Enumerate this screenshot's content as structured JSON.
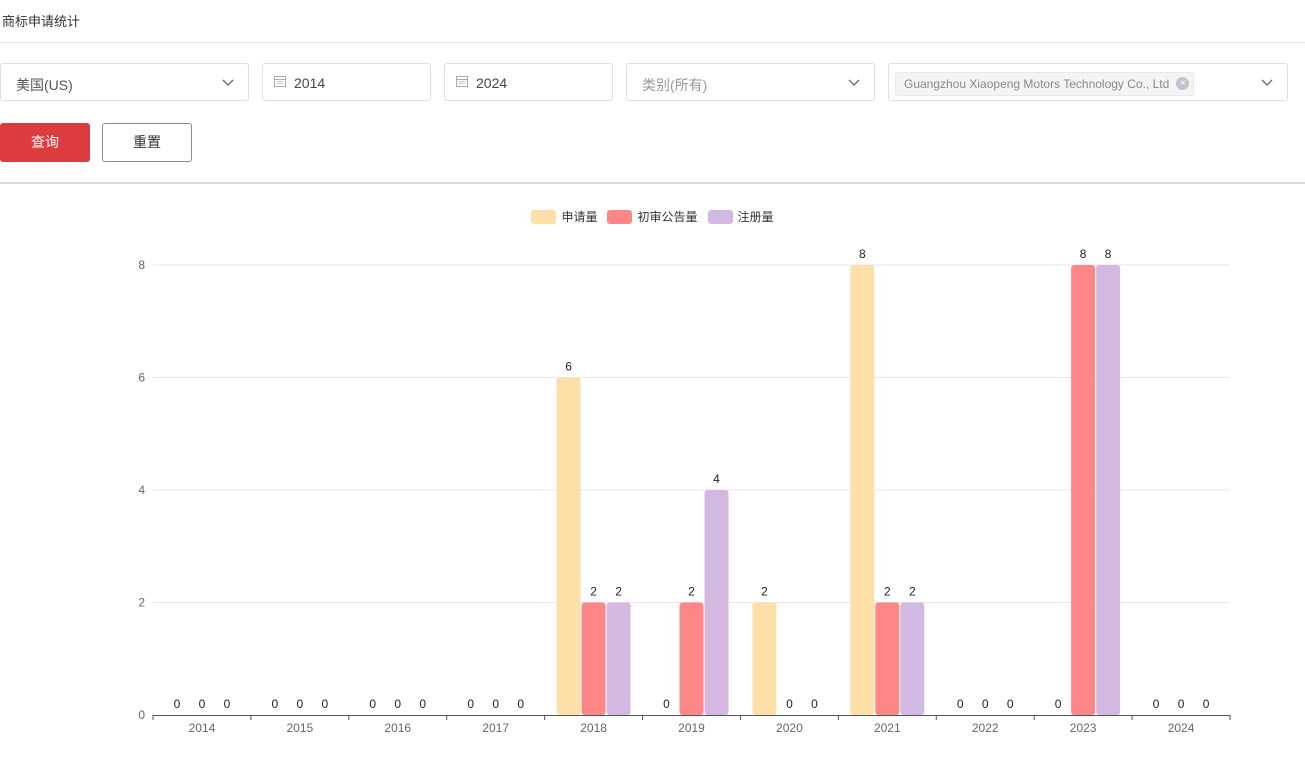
{
  "page": {
    "title": "商标申请统计"
  },
  "filters": {
    "country": "美国(US)",
    "start_year": "2014",
    "end_year": "2024",
    "category_placeholder": "类别(所有)",
    "applicant_tag": "Guangzhou Xiaopeng Motors Technology Co., Ltd"
  },
  "buttons": {
    "query": "查询",
    "reset": "重置"
  },
  "chart_data": {
    "type": "bar",
    "categories": [
      "2014",
      "2015",
      "2016",
      "2017",
      "2018",
      "2019",
      "2020",
      "2021",
      "2022",
      "2023",
      "2024"
    ],
    "series": [
      {
        "name": "申请量",
        "color": "#fce0a8",
        "values": [
          0,
          0,
          0,
          0,
          6,
          0,
          2,
          8,
          0,
          0,
          0
        ]
      },
      {
        "name": "初审公告量",
        "color": "#fd8686",
        "values": [
          0,
          0,
          0,
          0,
          2,
          2,
          0,
          2,
          0,
          8,
          0
        ]
      },
      {
        "name": "注册量",
        "color": "#d3b8e2",
        "values": [
          0,
          0,
          0,
          0,
          2,
          4,
          0,
          2,
          0,
          8,
          0
        ]
      }
    ],
    "yticks": [
      0,
      2,
      4,
      6,
      8
    ],
    "ylim": [
      0,
      8
    ],
    "grid": true,
    "legend_position": "top-center",
    "data_labels": true
  }
}
